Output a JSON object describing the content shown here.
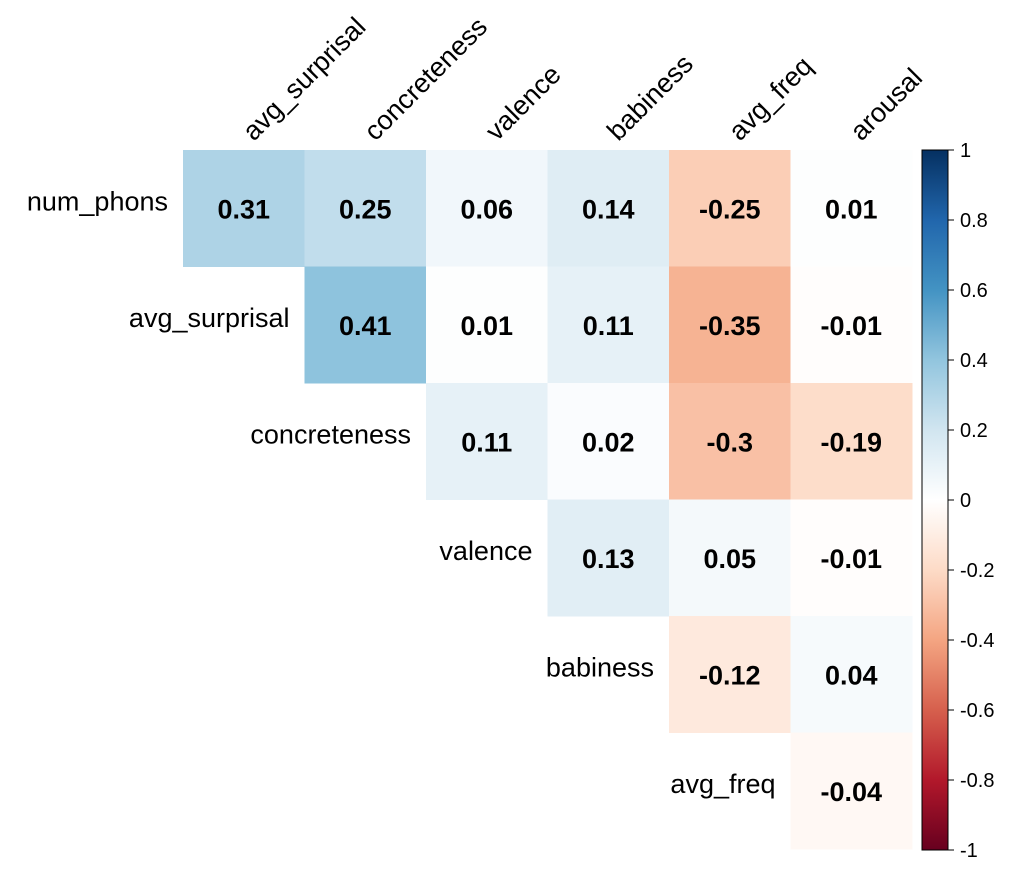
{
  "chart_data": {
    "type": "heatmap",
    "title": "",
    "row_labels": [
      "num_phons",
      "avg_surprisal",
      "concreteness",
      "valence",
      "babiness",
      "avg_freq"
    ],
    "col_labels": [
      "avg_surprisal",
      "concreteness",
      "valence",
      "babiness",
      "avg_freq",
      "arousal"
    ],
    "cells": [
      {
        "row": "num_phons",
        "col": "avg_surprisal",
        "value": 0.31,
        "label": "0.31"
      },
      {
        "row": "num_phons",
        "col": "concreteness",
        "value": 0.25,
        "label": "0.25"
      },
      {
        "row": "num_phons",
        "col": "valence",
        "value": 0.06,
        "label": "0.06"
      },
      {
        "row": "num_phons",
        "col": "babiness",
        "value": 0.14,
        "label": "0.14"
      },
      {
        "row": "num_phons",
        "col": "avg_freq",
        "value": -0.25,
        "label": "-0.25"
      },
      {
        "row": "num_phons",
        "col": "arousal",
        "value": 0.01,
        "label": "0.01"
      },
      {
        "row": "avg_surprisal",
        "col": "concreteness",
        "value": 0.41,
        "label": "0.41"
      },
      {
        "row": "avg_surprisal",
        "col": "valence",
        "value": 0.01,
        "label": "0.01"
      },
      {
        "row": "avg_surprisal",
        "col": "babiness",
        "value": 0.11,
        "label": "0.11"
      },
      {
        "row": "avg_surprisal",
        "col": "avg_freq",
        "value": -0.35,
        "label": "-0.35"
      },
      {
        "row": "avg_surprisal",
        "col": "arousal",
        "value": -0.01,
        "label": "-0.01"
      },
      {
        "row": "concreteness",
        "col": "valence",
        "value": 0.11,
        "label": "0.11"
      },
      {
        "row": "concreteness",
        "col": "babiness",
        "value": 0.02,
        "label": "0.02"
      },
      {
        "row": "concreteness",
        "col": "avg_freq",
        "value": -0.3,
        "label": "-0.3"
      },
      {
        "row": "concreteness",
        "col": "arousal",
        "value": -0.19,
        "label": "-0.19"
      },
      {
        "row": "valence",
        "col": "babiness",
        "value": 0.13,
        "label": "0.13"
      },
      {
        "row": "valence",
        "col": "avg_freq",
        "value": 0.05,
        "label": "0.05"
      },
      {
        "row": "valence",
        "col": "arousal",
        "value": -0.01,
        "label": "-0.01"
      },
      {
        "row": "babiness",
        "col": "avg_freq",
        "value": -0.12,
        "label": "-0.12"
      },
      {
        "row": "babiness",
        "col": "arousal",
        "value": 0.04,
        "label": "0.04"
      },
      {
        "row": "avg_freq",
        "col": "arousal",
        "value": -0.04,
        "label": "-0.04"
      }
    ],
    "colorbar": {
      "range": [
        -1,
        1
      ],
      "ticks": [
        1,
        0.8,
        0.6,
        0.4,
        0.2,
        0,
        -0.2,
        -0.4,
        -0.6,
        -0.8,
        -1
      ],
      "tick_labels": [
        "1",
        "0.8",
        "0.6",
        "0.4",
        "0.2",
        "0",
        "-0.2",
        "-0.4",
        "-0.6",
        "-0.8",
        "-1"
      ],
      "colors": [
        "#67001f",
        "#b2182b",
        "#d6604d",
        "#f4a582",
        "#fddbc7",
        "#ffffff",
        "#d1e5f0",
        "#92c5de",
        "#4393c3",
        "#2166ac",
        "#053061"
      ]
    },
    "legend": "right",
    "grid": false
  }
}
